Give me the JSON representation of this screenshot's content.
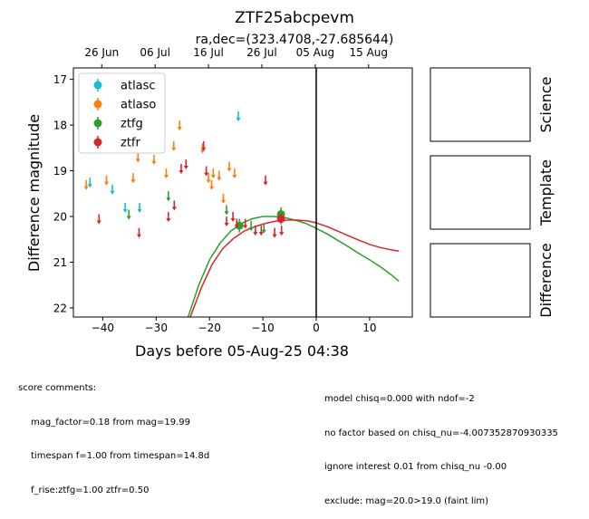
{
  "chart_data": {
    "type": "scatter",
    "title": "ZTF25abcpevm",
    "subtitle": "ra,dec=(323.4708,-27.685644)",
    "xlabel": "Days before 05-Aug-25 04:38",
    "ylabel": "Difference magnitude",
    "xlim": [
      -45.5,
      18
    ],
    "ylim": [
      22.2,
      16.75
    ],
    "y_inverted": true,
    "x_ticks": [
      -40,
      -30,
      -20,
      -10,
      0,
      10
    ],
    "y_ticks": [
      17,
      18,
      19,
      20,
      21,
      22
    ],
    "top_axis_ticks": [
      {
        "label": "26 Jun",
        "x": -40.19
      },
      {
        "label": "06 Jul",
        "x": -30.19
      },
      {
        "label": "16 Jul",
        "x": -20.19
      },
      {
        "label": "26 Jul",
        "x": -10.19
      },
      {
        "label": "05 Aug",
        "x": -0.19
      },
      {
        "label": "15 Aug",
        "x": 9.81
      }
    ],
    "legend_position": "upper-left",
    "series": [
      {
        "name": "atlasc",
        "color": "#17becf",
        "upper_limits": [
          [
            -42.4,
            19.25
          ],
          [
            -38.2,
            19.4
          ],
          [
            -35.8,
            19.8
          ],
          [
            -33.1,
            19.8
          ],
          [
            -14.6,
            17.8
          ]
        ],
        "detections": []
      },
      {
        "name": "atlaso",
        "color": "#ff7f0e",
        "upper_limits": [
          [
            -43.1,
            19.3
          ],
          [
            -39.3,
            19.2
          ],
          [
            -34.3,
            19.15
          ],
          [
            -33.4,
            18.7
          ],
          [
            -30.4,
            18.75
          ],
          [
            -28.1,
            19.05
          ],
          [
            -26.7,
            18.45
          ],
          [
            -25.6,
            18.0
          ],
          [
            -21.3,
            18.5
          ],
          [
            -20.2,
            19.15
          ],
          [
            -19.6,
            19.3
          ],
          [
            -19.3,
            19.05
          ],
          [
            -18.2,
            19.1
          ],
          [
            -17.4,
            19.6
          ],
          [
            -16.3,
            18.9
          ],
          [
            -15.3,
            19.05
          ]
        ],
        "detections": []
      },
      {
        "name": "ztfg",
        "color": "#2ca02c",
        "upper_limits": [
          [
            -35.1,
            19.95
          ],
          [
            -27.7,
            19.55
          ],
          [
            -16.8,
            19.85
          ],
          [
            -12.2,
            20.2
          ],
          [
            -9.8,
            20.25
          ]
        ],
        "detections": [
          [
            -14.4,
            20.2,
            0.15
          ],
          [
            -6.6,
            19.95,
            0.15
          ]
        ]
      },
      {
        "name": "ztfr",
        "color": "#d62728",
        "upper_limits": [
          [
            -40.7,
            20.05
          ],
          [
            -33.2,
            20.35
          ],
          [
            -27.7,
            20.0
          ],
          [
            -26.6,
            19.75
          ],
          [
            -25.3,
            18.95
          ],
          [
            -24.4,
            18.85
          ],
          [
            -21.1,
            18.45
          ],
          [
            -20.6,
            19.0
          ],
          [
            -16.8,
            20.1
          ],
          [
            -15.6,
            20.0
          ],
          [
            -14.9,
            20.15
          ],
          [
            -13.3,
            20.15
          ],
          [
            -11.4,
            20.3
          ],
          [
            -10.3,
            20.3
          ],
          [
            -9.5,
            19.2
          ],
          [
            -7.8,
            20.35
          ],
          [
            -6.5,
            20.3
          ]
        ],
        "detections": [
          [
            -6.6,
            20.05,
            0.12
          ]
        ]
      }
    ],
    "model_curves": [
      {
        "name": "ztfg model",
        "color": "#2ca02c",
        "points": [
          [
            -24.0,
            22.2
          ],
          [
            -22.0,
            21.5
          ],
          [
            -20.0,
            20.95
          ],
          [
            -18.0,
            20.58
          ],
          [
            -16.0,
            20.32
          ],
          [
            -14.0,
            20.15
          ],
          [
            -12.0,
            20.05
          ],
          [
            -10.0,
            20.0
          ],
          [
            -8.0,
            20.0
          ],
          [
            -6.0,
            20.02
          ],
          [
            -4.0,
            20.08
          ],
          [
            -2.0,
            20.15
          ],
          [
            0.0,
            20.26
          ],
          [
            2.0,
            20.38
          ],
          [
            4.0,
            20.52
          ],
          [
            6.0,
            20.66
          ],
          [
            8.0,
            20.81
          ],
          [
            10.0,
            20.95
          ],
          [
            12.0,
            21.1
          ],
          [
            14.0,
            21.27
          ],
          [
            15.5,
            21.42
          ]
        ]
      },
      {
        "name": "ztfr model",
        "color": "#d62728",
        "points": [
          [
            -23.6,
            22.2
          ],
          [
            -21.5,
            21.55
          ],
          [
            -19.5,
            21.05
          ],
          [
            -17.5,
            20.7
          ],
          [
            -15.5,
            20.48
          ],
          [
            -13.5,
            20.32
          ],
          [
            -11.5,
            20.22
          ],
          [
            -9.5,
            20.15
          ],
          [
            -7.5,
            20.1
          ],
          [
            -5.5,
            20.08
          ],
          [
            -3.5,
            20.08
          ],
          [
            -1.5,
            20.1
          ],
          [
            0.0,
            20.14
          ],
          [
            2.0,
            20.22
          ],
          [
            4.0,
            20.32
          ],
          [
            6.0,
            20.42
          ],
          [
            8.0,
            20.52
          ],
          [
            10.0,
            20.61
          ],
          [
            12.0,
            20.68
          ],
          [
            14.0,
            20.73
          ],
          [
            15.5,
            20.76
          ]
        ]
      }
    ],
    "vertical_line_x": 0,
    "side_panels": [
      "Science",
      "Template",
      "Difference"
    ]
  },
  "comments": {
    "header": "score comments:",
    "left": [
      "mag_factor=0.18 from mag=19.99",
      "timespan f=1.00 from timespan=14.8d",
      "f_rise:ztfg=1.00 ztfr=0.50"
    ],
    "right": [
      "model chisq=0.000 with ndof=-2",
      "no factor based on chisq_nu=-4.007352870930335",
      "ignore interest 0.01 from chisq_nu -0.00",
      "exclude: mag=20.0>19.0 (faint lim)"
    ]
  }
}
